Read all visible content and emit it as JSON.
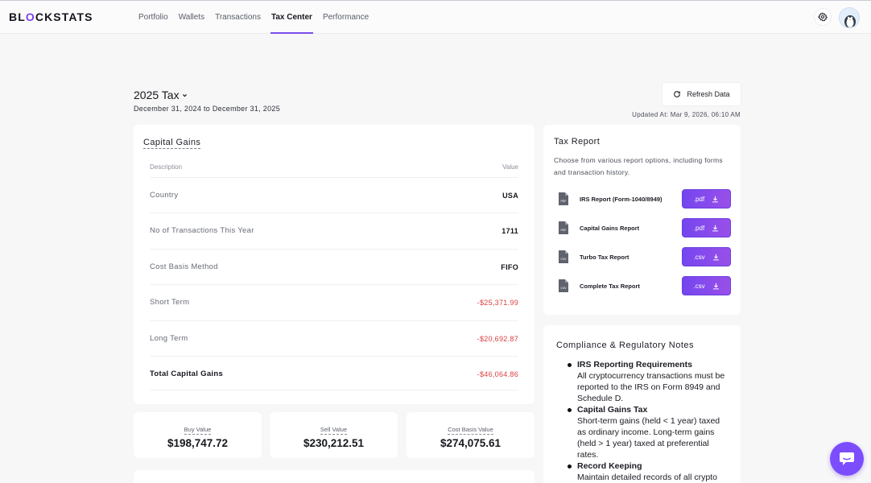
{
  "brand": {
    "logo_pre": "BL",
    "logo_accent": "O",
    "logo_post": "CKSTATS"
  },
  "nav": {
    "items": [
      {
        "label": "Portfolio",
        "active": false
      },
      {
        "label": "Wallets",
        "active": false
      },
      {
        "label": "Transactions",
        "active": false
      },
      {
        "label": "Tax Center",
        "active": true
      },
      {
        "label": "Performance",
        "active": false
      }
    ]
  },
  "header": {
    "tax_year": "2025 Tax",
    "date_range": "December 31, 2024 to December 31, 2025",
    "refresh_label": "Refresh Data",
    "updated_at": "Updated At: Mar 9, 2026, 06:10 AM"
  },
  "capital_gains": {
    "title": "Capital Gains",
    "col_description": "Description",
    "col_value": "Value",
    "rows": [
      {
        "label": "Country",
        "value": "USA"
      },
      {
        "label": "No of Transactions This Year",
        "value": "1711"
      },
      {
        "label": "Cost Basis Method",
        "value": "FIFO"
      },
      {
        "label": "Short Term",
        "value": "-$25,371.99"
      },
      {
        "label": "Long Term",
        "value": "-$20,692.87"
      },
      {
        "label": "Total Capital Gains",
        "value": "-$46,064.86"
      }
    ]
  },
  "summary": {
    "buy": {
      "label": "Buy Value",
      "value": "$198,747.72"
    },
    "sell": {
      "label": "Sell Value",
      "value": "$230,212.51"
    },
    "cost_basis": {
      "label": "Cost Basis Value",
      "value": "$274,075.61"
    }
  },
  "tax_report": {
    "title": "Tax Report",
    "description": "Choose from various report options, including forms and transaction history.",
    "reports": [
      {
        "name": "IRS Report (Form-1040/8949)",
        "format": ".pdf",
        "icon": "pdf-file-icon"
      },
      {
        "name": "Capital Gains Report",
        "format": ".pdf",
        "icon": "pdf-file-icon"
      },
      {
        "name": "Turbo Tax Report",
        "format": ".csv",
        "icon": "csv-file-icon"
      },
      {
        "name": "Complete Tax Report",
        "format": ".csv",
        "icon": "csv-file-icon"
      }
    ]
  },
  "compliance": {
    "title": "Compliance & Regulatory Notes",
    "items": [
      {
        "heading": "IRS Reporting Requirements",
        "body": "All cryptocurrency transactions must be reported to the IRS on Form 8949 and Schedule D."
      },
      {
        "heading": "Capital Gains Tax",
        "body": "Short-term gains (held < 1 year) taxed as ordinary income. Long-term gains (held > 1 year) taxed at preferential rates."
      },
      {
        "heading": "Record Keeping",
        "body": "Maintain detailed records of all crypto"
      }
    ]
  },
  "colors": {
    "accent": "#7b4de8",
    "negative": "#d93e3e",
    "button_gradient_start": "#7446ef",
    "button_gradient_end": "#9a4fe9"
  }
}
